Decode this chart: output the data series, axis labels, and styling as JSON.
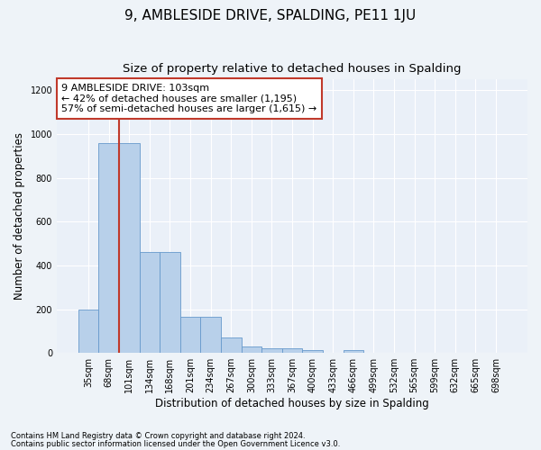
{
  "title": "9, AMBLESIDE DRIVE, SPALDING, PE11 1JU",
  "subtitle": "Size of property relative to detached houses in Spalding",
  "xlabel": "Distribution of detached houses by size in Spalding",
  "ylabel": "Number of detached properties",
  "footnote1": "Contains HM Land Registry data © Crown copyright and database right 2024.",
  "footnote2": "Contains public sector information licensed under the Open Government Licence v3.0.",
  "categories": [
    "35sqm",
    "68sqm",
    "101sqm",
    "134sqm",
    "168sqm",
    "201sqm",
    "234sqm",
    "267sqm",
    "300sqm",
    "333sqm",
    "367sqm",
    "400sqm",
    "433sqm",
    "466sqm",
    "499sqm",
    "532sqm",
    "565sqm",
    "599sqm",
    "632sqm",
    "665sqm",
    "698sqm"
  ],
  "values": [
    200,
    960,
    960,
    460,
    460,
    165,
    165,
    70,
    28,
    22,
    20,
    14,
    0,
    13,
    0,
    0,
    0,
    0,
    0,
    0,
    0
  ],
  "bar_color": "#b8d0ea",
  "bar_edge_color": "#6699cc",
  "vline_x_index": 2,
  "vline_color": "#c0392b",
  "annotation_line1": "9 AMBLESIDE DRIVE: 103sqm",
  "annotation_line2": "← 42% of detached houses are smaller (1,195)",
  "annotation_line3": "57% of semi-detached houses are larger (1,615) →",
  "annotation_box_color": "#ffffff",
  "annotation_border_color": "#c0392b",
  "ylim": [
    0,
    1250
  ],
  "yticks": [
    0,
    200,
    400,
    600,
    800,
    1000,
    1200
  ],
  "fig_background_color": "#eef3f8",
  "ax_background_color": "#eaf0f8",
  "grid_color": "#ffffff",
  "title_fontsize": 11,
  "subtitle_fontsize": 9.5,
  "annotation_fontsize": 8,
  "axis_label_fontsize": 8.5,
  "tick_fontsize": 7
}
